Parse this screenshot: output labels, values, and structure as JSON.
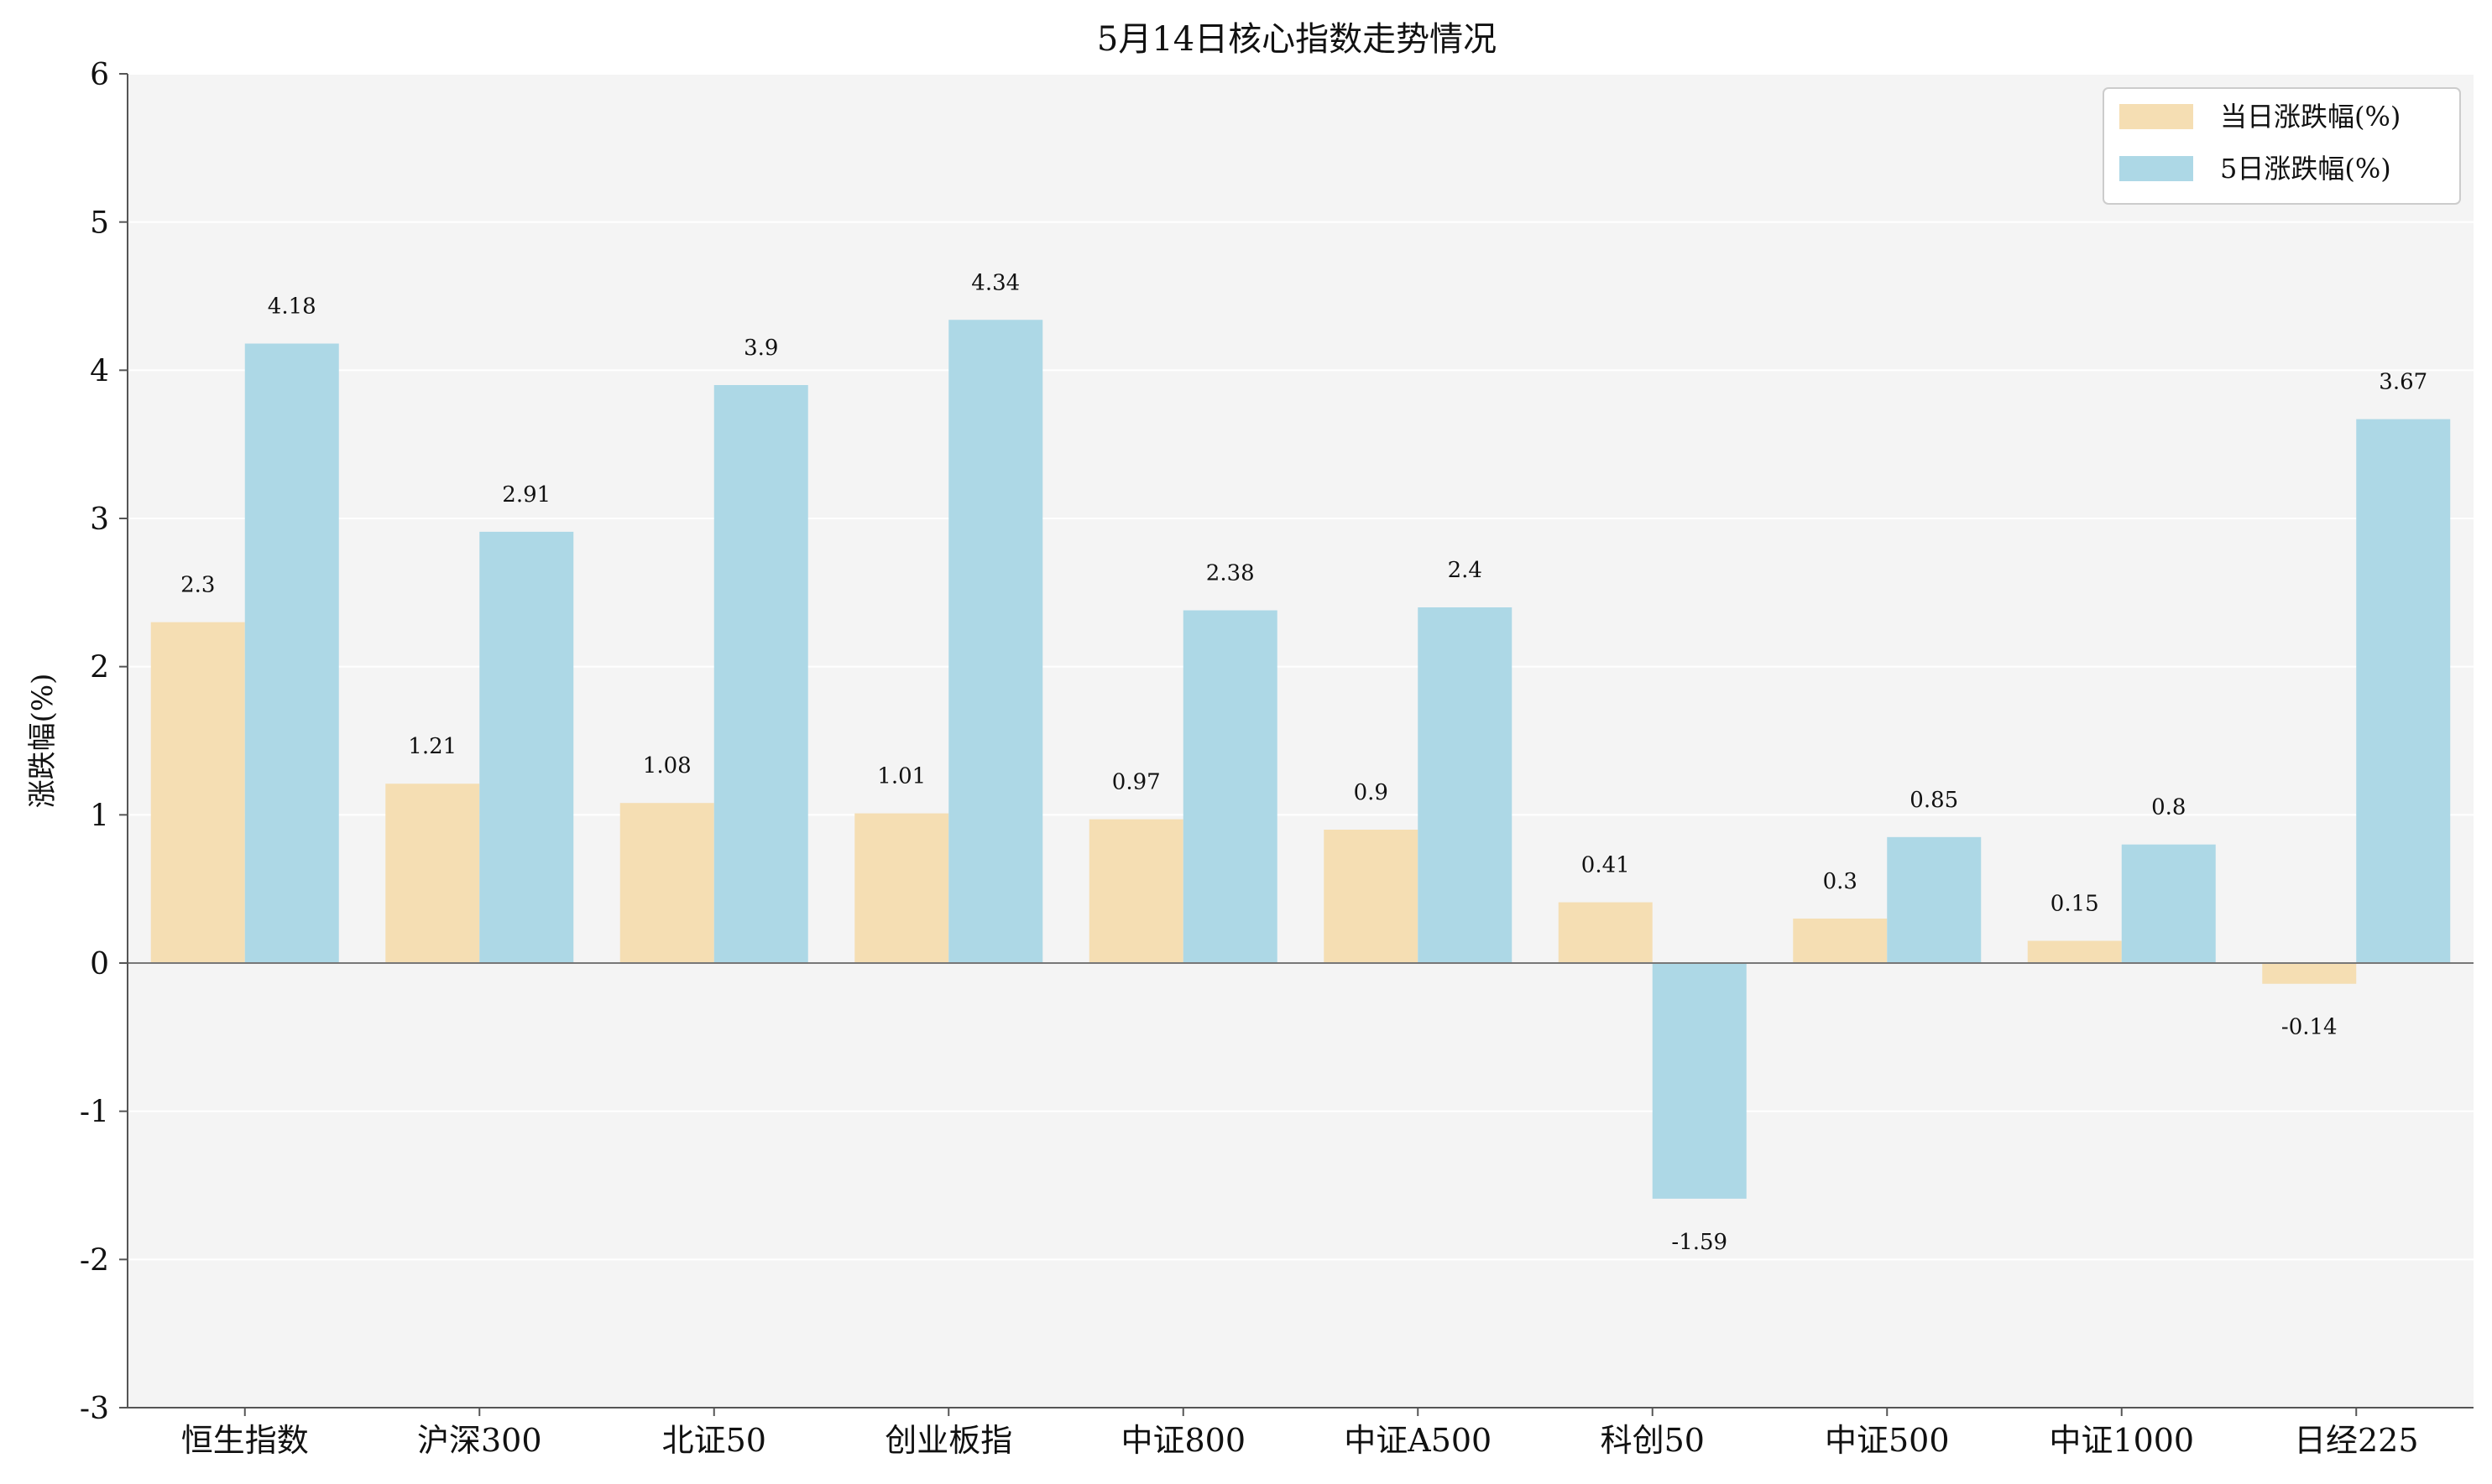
{
  "chart_data": {
    "type": "bar",
    "title": "5月14日核心指数走势情况",
    "xlabel": "",
    "ylabel": "涨跌幅(%)",
    "ylim": [
      -3,
      6
    ],
    "yticks": [
      -3,
      -2,
      -1,
      0,
      1,
      2,
      3,
      4,
      5,
      6
    ],
    "grid": true,
    "legend_position": "top-right",
    "categories": [
      "恒生指数",
      "沪深300",
      "北证50",
      "创业板指",
      "中证800",
      "中证A500",
      "科创50",
      "中证500",
      "中证1000",
      "日经225"
    ],
    "series": [
      {
        "name": "当日涨跌幅(%)",
        "color": "#f5deb3",
        "values": [
          2.3,
          1.21,
          1.08,
          1.01,
          0.97,
          0.9,
          0.41,
          0.3,
          0.15,
          -0.14
        ]
      },
      {
        "name": "5日涨跌幅(%)",
        "color": "#add8e6",
        "values": [
          4.18,
          2.91,
          3.9,
          4.34,
          2.38,
          2.4,
          -1.59,
          0.85,
          0.8,
          3.67
        ]
      }
    ]
  }
}
